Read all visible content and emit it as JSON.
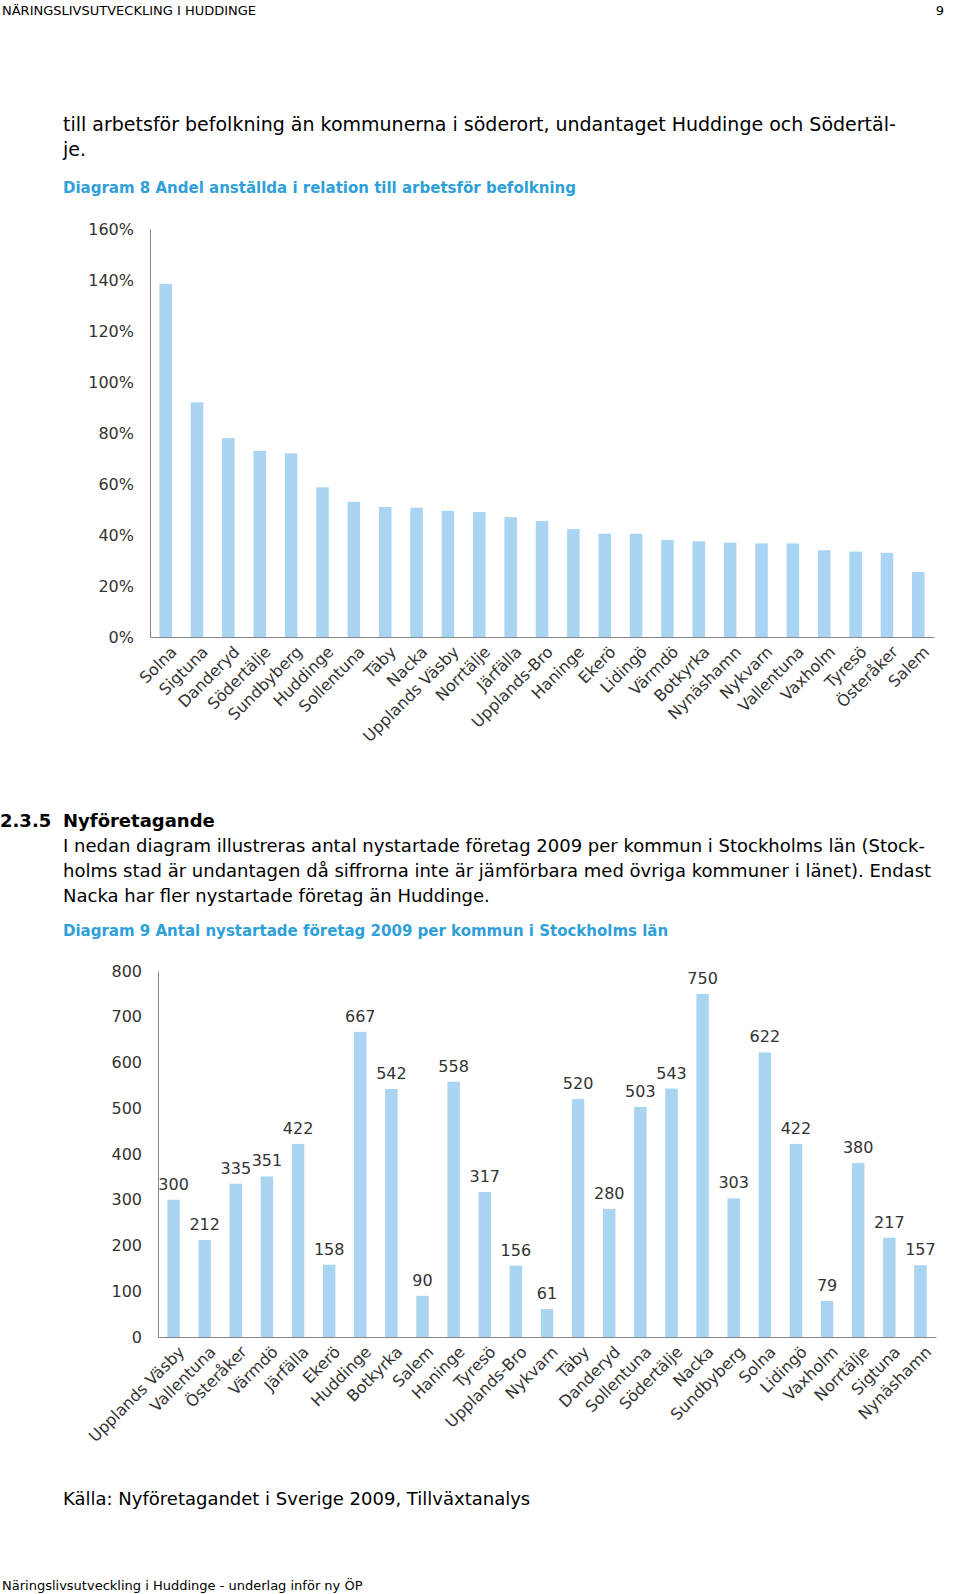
{
  "header": {
    "title": "NÄRINGSLIVSUTVECKLING I HUDDINGE",
    "page": "9"
  },
  "intro": {
    "lines": [
      "till arbetsför befolkning än kommunerna i söderort, undantaget Huddinge och Södertäl-",
      "je."
    ]
  },
  "section": {
    "number": "2.3.5",
    "title": "Nyföretagande",
    "lines": [
      "I nedan diagram illustreras antal nystartade företag 2009 per kommun i Stockholms län (Stock-",
      "holms stad är undantagen då siffrorna inte är jämförbara med övriga kommuner i länet). Endast",
      "Nacka har fler nystartade företag än Huddinge."
    ]
  },
  "source": "Källa: Nyföretagandet i Sverige 2009, Tillväxtanalys",
  "footer": "Näringslivsutveckling i Huddinge - underlag inför ny ÖP",
  "chart_data": [
    {
      "type": "bar",
      "title": "Diagram 8 Andel anställda i relation till arbetsför befolkning",
      "categories": [
        "Solna",
        "Sigtuna",
        "Danderyd",
        "Södertälje",
        "Sundbyberg",
        "Huddinge",
        "Sollentuna",
        "Täby",
        "Nacka",
        "Upplands Väsby",
        "Norrtälje",
        "Järfälla",
        "Upplands-Bro",
        "Haninge",
        "Ekerö",
        "Lidingö",
        "Värmdö",
        "Botkyrka",
        "Nynäshamn",
        "Nykvarn",
        "Vallentuna",
        "Vaxholm",
        "Tyresö",
        "Österåker",
        "Salem"
      ],
      "values": [
        138.5,
        92,
        78,
        73,
        72,
        58.7,
        53,
        51,
        50.7,
        49.5,
        49,
        47,
        45.5,
        42.3,
        40.5,
        40.5,
        38,
        37.5,
        37,
        36.7,
        36.7,
        34,
        33.5,
        33,
        25.5
      ],
      "color": "#a9d5f3",
      "ylim": [
        0,
        160
      ],
      "yticks": [
        {
          "value": 0,
          "label": "0%"
        },
        {
          "value": 20,
          "label": "20%"
        },
        {
          "value": 40,
          "label": "40%"
        },
        {
          "value": 60,
          "label": "60%"
        },
        {
          "value": 80,
          "label": "80%"
        },
        {
          "value": 100,
          "label": "100%"
        },
        {
          "value": 120,
          "label": "120%"
        },
        {
          "value": 140,
          "label": "140%"
        },
        {
          "value": 160,
          "label": "160%"
        }
      ],
      "grid": false
    },
    {
      "type": "bar",
      "title": "Diagram 9 Antal nystartade företag 2009 per kommun i Stockholms län",
      "categories": [
        "Upplands Väsby",
        "Vallentuna",
        "Österåker",
        "Värmdö",
        "Järfälla",
        "Ekerö",
        "Huddinge",
        "Botkyrka",
        "Salem",
        "Haninge",
        "Tyresö",
        "Upplands-Bro",
        "Nykvarn",
        "Täby",
        "Danderyd",
        "Sollentuna",
        "Södertälje",
        "Nacka",
        "Sundbyberg",
        "Solna",
        "Lidingö",
        "Vaxholm",
        "Norrtälje",
        "Sigtuna",
        "Nynäshamn"
      ],
      "values": [
        300,
        212,
        335,
        351,
        422,
        158,
        667,
        542,
        90,
        558,
        317,
        156,
        61,
        520,
        280,
        503,
        543,
        750,
        303,
        622,
        422,
        79,
        380,
        217,
        157
      ],
      "color": "#a9d5f3",
      "ylim": [
        0,
        800
      ],
      "yticks": [
        0,
        100,
        200,
        300,
        400,
        500,
        600,
        700,
        800
      ],
      "grid": false,
      "data_labels": true
    }
  ]
}
